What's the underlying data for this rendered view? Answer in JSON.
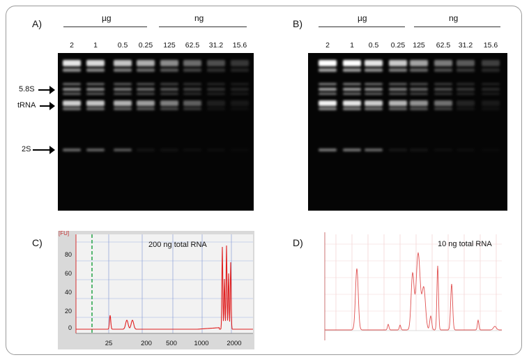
{
  "panels": {
    "a": {
      "label": "A)",
      "unit_left": "µg",
      "unit_right": "ng"
    },
    "b": {
      "label": "B)",
      "unit_left": "µg",
      "unit_right": "ng"
    },
    "c": {
      "label": "C)",
      "fu": "[FU]",
      "note": "200 ng total RNA",
      "y_ticks": [
        "80",
        "60",
        "40",
        "20",
        "0"
      ],
      "x_ticks": [
        "25",
        "200",
        "500",
        "1000",
        "2000"
      ]
    },
    "d": {
      "label": "D)",
      "note": "10 ng total RNA"
    }
  },
  "lanes": [
    "2",
    "1",
    "0.5",
    "0.25",
    "125",
    "62.5",
    "31.2",
    "15.6"
  ],
  "markers": [
    "5.8S",
    "tRNA",
    "2S"
  ],
  "colors": {
    "gel": "#050505",
    "trace": "#e02020",
    "plot_bg": "#dcdcdc",
    "grid": "#8aa0d8",
    "dash": "#2fa84f"
  }
}
